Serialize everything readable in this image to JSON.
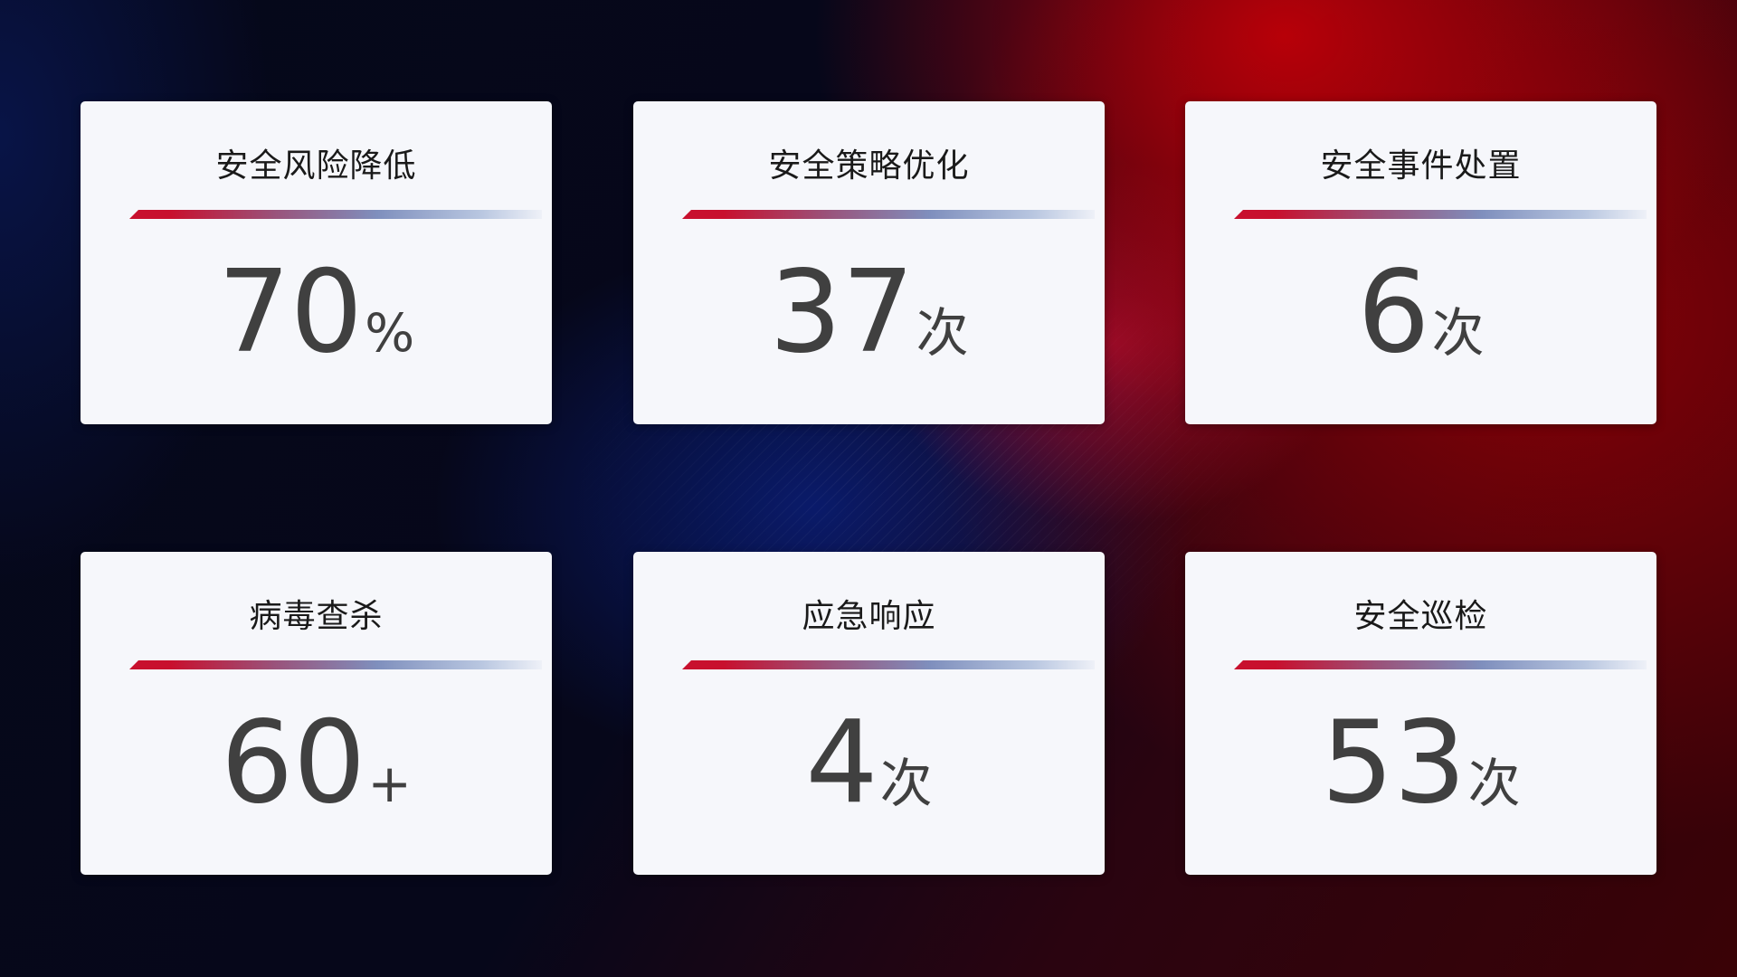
{
  "cards": [
    {
      "title": "安全风险降低",
      "value": "70",
      "unit": "%"
    },
    {
      "title": "安全策略优化",
      "value": "37",
      "unit": "次"
    },
    {
      "title": "安全事件处置",
      "value": "6",
      "unit": "次"
    },
    {
      "title": "病毒查杀",
      "value": "60",
      "unit": "+"
    },
    {
      "title": "应急响应",
      "value": "4",
      "unit": "次"
    },
    {
      "title": "安全巡检",
      "value": "53",
      "unit": "次"
    }
  ],
  "colors": {
    "accent_red": "#c8102e",
    "accent_blue": "#7f8fbd",
    "card_bg": "#f6f7fb",
    "value_text": "#404040"
  }
}
